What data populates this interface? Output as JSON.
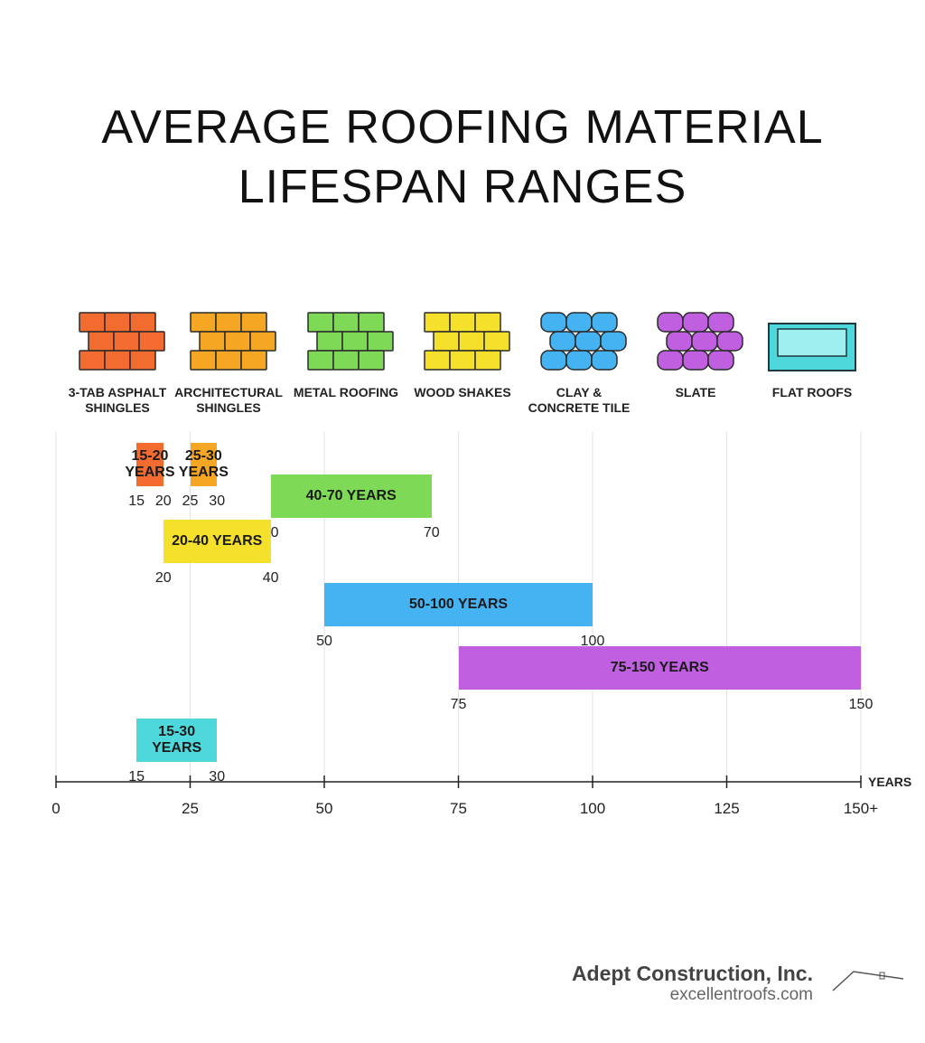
{
  "chart_data": {
    "type": "range",
    "title": "AVERAGE ROOFING MATERIAL LIFESPAN RANGES",
    "categories": [
      "3-TAB ASPHALT SHINGLES",
      "ARCHITECTURAL SHINGLES",
      "METAL ROOFING",
      "WOOD SHAKES",
      "CLAY & CONCRETE TILE",
      "SLATE",
      "FLAT ROOFS"
    ],
    "colors": [
      "#f26b2f",
      "#f5a623",
      "#7ed957",
      "#f5e02c",
      "#45b3f2",
      "#c060e0",
      "#4fd8dc"
    ],
    "ranges": [
      [
        15,
        20
      ],
      [
        25,
        30
      ],
      [
        40,
        70
      ],
      [
        20,
        40
      ],
      [
        50,
        100
      ],
      [
        75,
        150
      ],
      [
        15,
        30
      ]
    ],
    "value_labels": [
      "15-20 YEARS",
      "25-30 YEARS",
      "40-70 YEARS",
      "20-40 YEARS",
      "50-100 YEARS",
      "75-150 YEARS",
      "15-30 YEARS"
    ],
    "x_label": "YEARS",
    "xlim": [
      0,
      150
    ],
    "xticks": [
      0,
      25,
      50,
      75,
      100,
      125,
      {
        "value": 150,
        "label": "150+"
      }
    ],
    "grid": true
  },
  "footer": {
    "company": "Adept Construction, Inc.",
    "website": "excellentroofs.com"
  }
}
